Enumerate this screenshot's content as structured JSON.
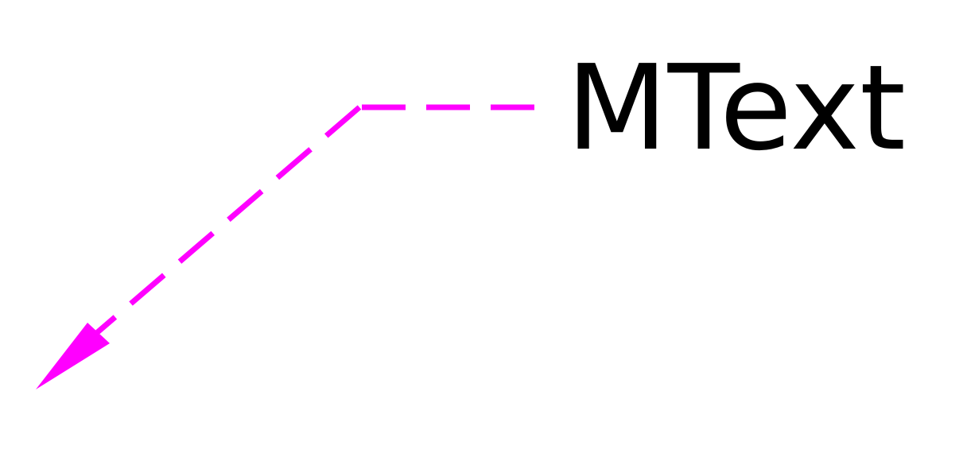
{
  "mleader": {
    "text": "MText",
    "leader_color": "#ff00ff",
    "text_color": "#000000",
    "linetype": "dashed",
    "arrowhead": "closed-filled"
  }
}
